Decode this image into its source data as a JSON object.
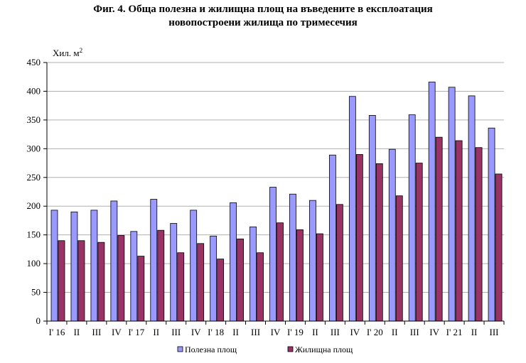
{
  "chart_data": {
    "type": "bar",
    "title_line1": "Фиг. 4. Обща полезна и жилищна площ на въведените в експлоатация",
    "title_line2": "новопостроени жилища по тримесечия",
    "ylabel": "Хил. м",
    "ylabel_sup": "2",
    "ylim": [
      0,
      450
    ],
    "yticks": [
      0,
      50,
      100,
      150,
      200,
      250,
      300,
      350,
      400,
      450
    ],
    "grid": true,
    "legend_position": "bottom",
    "categories": [
      "I' 16",
      "II",
      "III",
      "IV",
      "I' 17",
      "II",
      "III",
      "IV",
      "I' 18",
      "II",
      "III",
      "IV",
      "I' 19",
      "II",
      "III",
      "IV",
      "I' 20",
      "II",
      "III",
      "IV",
      "I' 21",
      "II",
      "III"
    ],
    "series": [
      {
        "name": "Полезна площ",
        "color": "#9999ff",
        "values": [
          193,
          190,
          193,
          209,
          156,
          212,
          170,
          193,
          148,
          206,
          164,
          233,
          221,
          210,
          289,
          391,
          358,
          299,
          359,
          416,
          407,
          392,
          336
        ]
      },
      {
        "name": "Жилищна площ",
        "color": "#993366",
        "values": [
          140,
          140,
          137,
          149,
          113,
          158,
          119,
          135,
          108,
          143,
          119,
          171,
          159,
          152,
          203,
          290,
          274,
          218,
          275,
          320,
          314,
          302,
          256
        ]
      }
    ]
  }
}
